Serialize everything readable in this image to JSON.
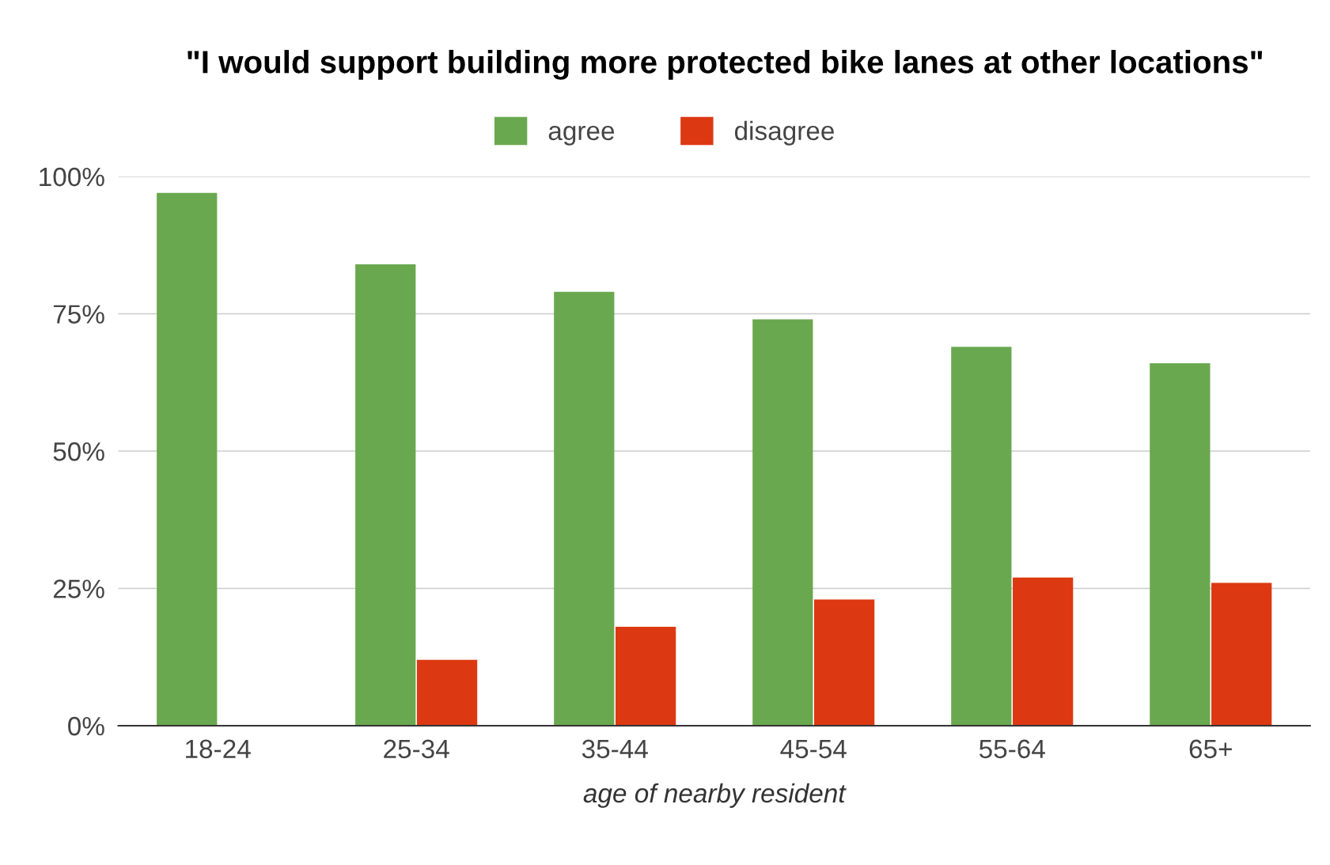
{
  "chart_data": {
    "type": "bar",
    "title": "\"I would support building more protected bike lanes at other locations\"",
    "xlabel": "age of nearby resident",
    "categories": [
      "18-24",
      "25-34",
      "35-44",
      "45-54",
      "55-64",
      "65+"
    ],
    "series": [
      {
        "name": "agree",
        "color": "#6aa84f",
        "values": [
          97,
          84,
          79,
          74,
          69,
          66
        ]
      },
      {
        "name": "disagree",
        "color": "#dc3912",
        "values": [
          0,
          12,
          18,
          23,
          27,
          26
        ]
      }
    ],
    "ylim": [
      0,
      100
    ],
    "yticks": [
      {
        "value": 0,
        "label": "0%"
      },
      {
        "value": 25,
        "label": "25%"
      },
      {
        "value": 50,
        "label": "50%"
      },
      {
        "value": 75,
        "label": "75%"
      },
      {
        "value": 100,
        "label": "100%"
      }
    ],
    "grid": "y",
    "legend": "top"
  }
}
